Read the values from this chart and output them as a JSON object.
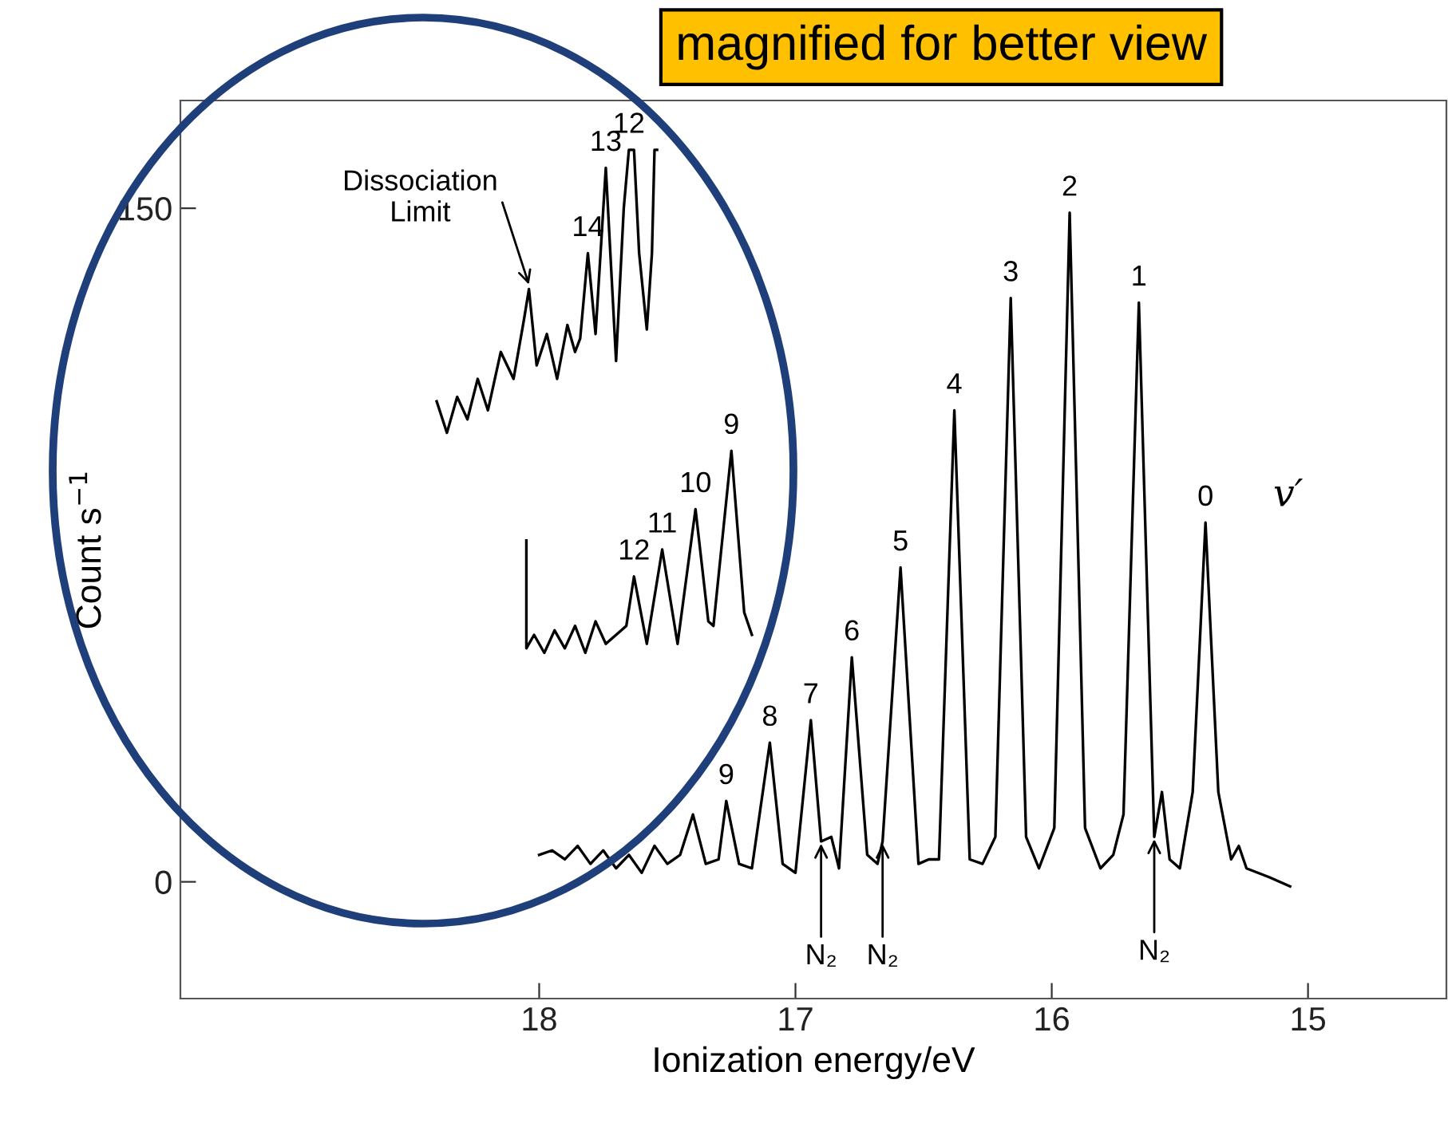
{
  "chart_data": {
    "type": "line",
    "xlabel": "Ionization energy/eV",
    "ylabel": "Count s$^{−1}$",
    "xlim": [
      19.4,
      14.46
    ],
    "xticks": [
      18,
      17,
      16,
      15
    ],
    "ylim": [
      -26,
      174
    ],
    "yticks": [
      0,
      150
    ],
    "grid": false,
    "legend": false,
    "marker": "none",
    "line_style": "solid",
    "series": [
      {
        "color": "#000000",
        "x": [
          18.0,
          17.95,
          17.9,
          17.85,
          17.8,
          17.75,
          17.7,
          17.65,
          17.6,
          17.55,
          17.5,
          17.45,
          17.4,
          17.35,
          17.3,
          17.27,
          17.22,
          17.17,
          17.1,
          17.05,
          17.0,
          16.94,
          16.9,
          16.86,
          16.83,
          16.78,
          16.72,
          16.68,
          16.66,
          16.59,
          16.52,
          16.48,
          16.44,
          16.38,
          16.32,
          16.27,
          16.22,
          16.16,
          16.1,
          16.05,
          15.99,
          15.93,
          15.87,
          15.81,
          15.76,
          15.72,
          15.66,
          15.6,
          15.57,
          15.54,
          15.5,
          15.45,
          15.4,
          15.35,
          15.3,
          15.27,
          15.24,
          15.15,
          15.07
        ],
        "values": [
          6,
          7,
          5,
          8,
          4,
          7,
          3,
          6,
          2,
          8,
          4,
          6,
          15,
          4,
          5,
          18,
          4,
          3,
          31,
          4,
          2,
          36,
          9,
          10,
          3,
          50,
          6,
          4,
          9,
          70,
          4,
          5,
          5,
          105,
          5,
          4,
          10,
          130,
          10,
          3,
          12,
          149,
          12,
          3,
          6,
          15,
          129,
          10,
          20,
          5,
          3,
          20,
          80,
          20,
          5,
          8,
          3,
          1,
          -1
        ]
      },
      {
        "color": "#000000",
        "x": [
          18.05,
          18.05,
          18.02,
          17.98,
          17.94,
          17.9,
          17.86,
          17.82,
          17.78,
          17.74,
          17.7,
          17.66,
          17.63,
          17.58,
          17.52,
          17.46,
          17.39,
          17.34,
          17.32,
          17.25,
          17.2,
          17.17
        ],
        "values": [
          76,
          52,
          55,
          51,
          56,
          52,
          57,
          51,
          58,
          53,
          55,
          57,
          68,
          53,
          74,
          53,
          83,
          58,
          57,
          96,
          60,
          55
        ]
      },
      {
        "color": "#000000",
        "x": [
          18.4,
          18.36,
          18.32,
          18.28,
          18.24,
          18.2,
          18.15,
          18.1,
          18.06,
          18.04,
          18.01,
          17.97,
          17.93,
          17.89,
          17.86,
          17.84,
          17.81,
          17.78,
          17.74,
          17.7,
          17.67,
          17.65,
          17.63,
          17.61,
          17.58,
          17.56,
          17.55,
          17.54
        ],
        "values": [
          107,
          100,
          108,
          103,
          112,
          105,
          118,
          112,
          125,
          132,
          115,
          122,
          112,
          124,
          118,
          121,
          140,
          122,
          159,
          116,
          150,
          163,
          163,
          140,
          123,
          140,
          163,
          163
        ]
      }
    ],
    "annotations": [
      "magnified for better view",
      "v′",
      {
        "text": "9",
        "x": 17.27,
        "y": 18
      },
      {
        "text": "8",
        "x": 17.1,
        "y": 31
      },
      {
        "text": "7",
        "x": 16.94,
        "y": 36
      },
      {
        "text": "6",
        "x": 16.78,
        "y": 50
      },
      {
        "text": "5",
        "x": 16.59,
        "y": 70
      },
      {
        "text": "4",
        "x": 16.38,
        "y": 105
      },
      {
        "text": "3",
        "x": 16.16,
        "y": 130
      },
      {
        "text": "2",
        "x": 15.93,
        "y": 149
      },
      {
        "text": "1",
        "x": 15.66,
        "y": 129
      },
      {
        "text": "0",
        "x": 15.4,
        "y": 80
      },
      {
        "text": "12",
        "x": 17.63,
        "y": 68
      },
      {
        "text": "11",
        "x": 17.52,
        "y": 74
      },
      {
        "text": "10",
        "x": 17.39,
        "y": 83
      },
      {
        "text": "9",
        "x": 17.25,
        "y": 96
      },
      {
        "text": "14",
        "x": 17.81,
        "y": 140
      },
      {
        "text": "13",
        "x": 17.74,
        "y": 159
      },
      {
        "text": "12",
        "x": 17.65,
        "y": 163
      },
      {
        "text": "Dissociation\nLimit",
        "x": 18.04,
        "y": 133
      },
      {
        "text": "N₂",
        "x": 16.9,
        "y": 9
      },
      {
        "text": "N₂",
        "x": 16.66,
        "y": 9
      },
      {
        "text": "N₂",
        "x": 15.6,
        "y": 10
      }
    ]
  }
}
